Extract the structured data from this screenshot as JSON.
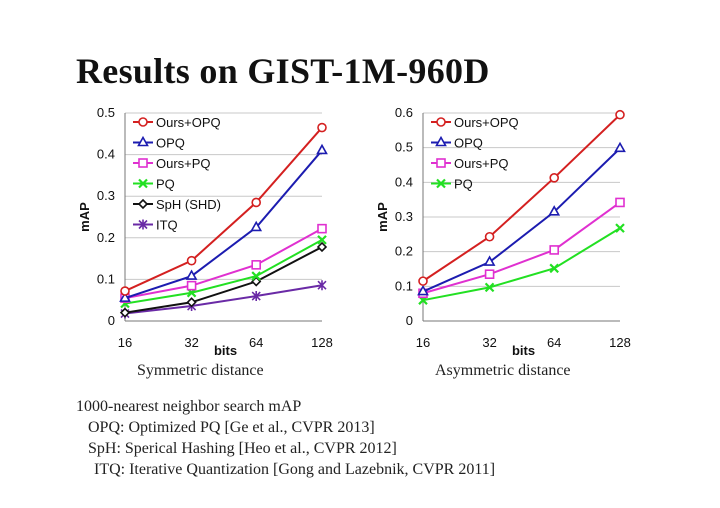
{
  "title": "Results on GIST-1M-960D",
  "colors": {
    "Ours+OPQ": "#d42020",
    "OPQ": "#1c1cb0",
    "Ours+PQ": "#e030d0",
    "PQ": "#22e022",
    "SpH (SHD)": "#111111",
    "ITQ": "#6a2aa6"
  },
  "chart_data": [
    {
      "type": "line",
      "caption": "Symmetric distance",
      "xlabel": "bits",
      "ylabel": "mAP",
      "x": [
        "16",
        "32",
        "64",
        "128"
      ],
      "ylim": [
        0,
        0.5
      ],
      "yticks": [
        "0",
        "0.1",
        "0.2",
        "0.3",
        "0.4",
        "0.5"
      ],
      "grid": true,
      "legend": "top-left",
      "series": [
        {
          "name": "Ours+OPQ",
          "marker": "circle",
          "values": [
            0.072,
            0.145,
            0.285,
            0.465
          ]
        },
        {
          "name": "OPQ",
          "marker": "triangle",
          "values": [
            0.055,
            0.108,
            0.225,
            0.41
          ]
        },
        {
          "name": "Ours+PQ",
          "marker": "square",
          "values": [
            0.055,
            0.085,
            0.135,
            0.222
          ]
        },
        {
          "name": "PQ",
          "marker": "x",
          "values": [
            0.042,
            0.068,
            0.108,
            0.195
          ]
        },
        {
          "name": "SpH (SHD)",
          "marker": "diamond",
          "values": [
            0.02,
            0.045,
            0.095,
            0.178
          ]
        },
        {
          "name": "ITQ",
          "marker": "star",
          "values": [
            0.018,
            0.036,
            0.06,
            0.086
          ]
        }
      ]
    },
    {
      "type": "line",
      "caption": "Asymmetric distance",
      "xlabel": "bits",
      "ylabel": "mAP",
      "x": [
        "16",
        "32",
        "64",
        "128"
      ],
      "ylim": [
        0,
        0.6
      ],
      "yticks": [
        "0",
        "0.1",
        "0.2",
        "0.3",
        "0.4",
        "0.5",
        "0.6"
      ],
      "grid": true,
      "legend": "top-left",
      "series": [
        {
          "name": "Ours+OPQ",
          "marker": "circle",
          "values": [
            0.115,
            0.243,
            0.413,
            0.595
          ]
        },
        {
          "name": "OPQ",
          "marker": "triangle",
          "values": [
            0.085,
            0.17,
            0.315,
            0.498
          ]
        },
        {
          "name": "Ours+PQ",
          "marker": "square",
          "values": [
            0.08,
            0.135,
            0.205,
            0.342
          ]
        },
        {
          "name": "PQ",
          "marker": "x",
          "values": [
            0.06,
            0.097,
            0.152,
            0.268
          ]
        }
      ]
    }
  ],
  "notes": {
    "line1": "1000-nearest neighbor search mAP",
    "line2": "OPQ: Optimized PQ [Ge et al., CVPR 2013]",
    "line3": "SpH: Sperical Hashing [Heo et al., CVPR 2012]",
    "line4": "ITQ: Iterative Quantization [Gong and Lazebnik, CVPR 2011]"
  }
}
